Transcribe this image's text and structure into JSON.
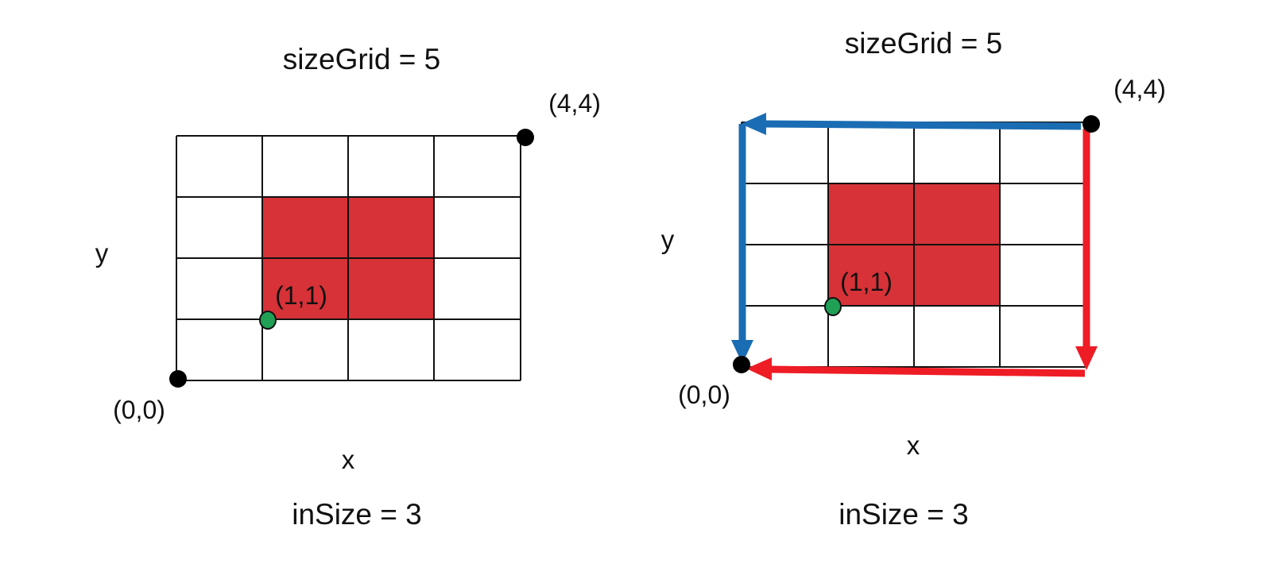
{
  "colors": {
    "cell_fill": "#D63238",
    "start_point": "#1FA055",
    "corner_point": "#000000",
    "arrow_blue": "#1B6DB3",
    "arrow_red": "#EE1C25",
    "grid_line": "#111111"
  },
  "icons": {
    "corner_marker": "filled-circle",
    "start_marker": "green-circle",
    "arrow": "arrowhead"
  },
  "left_diagram": {
    "title": "sizeGrid = 5",
    "footer": "inSize = 3",
    "x_label": "x",
    "y_label": "y",
    "origin_label": "(0,0)",
    "corner_label": "(4,4)",
    "start_label": "(1,1)"
  },
  "right_diagram": {
    "title": "sizeGrid = 5",
    "footer": "inSize = 3",
    "x_label": "x",
    "y_label": "y",
    "origin_label": "(0,0)",
    "corner_label": "(4,4)",
    "start_label": "(1,1)"
  }
}
